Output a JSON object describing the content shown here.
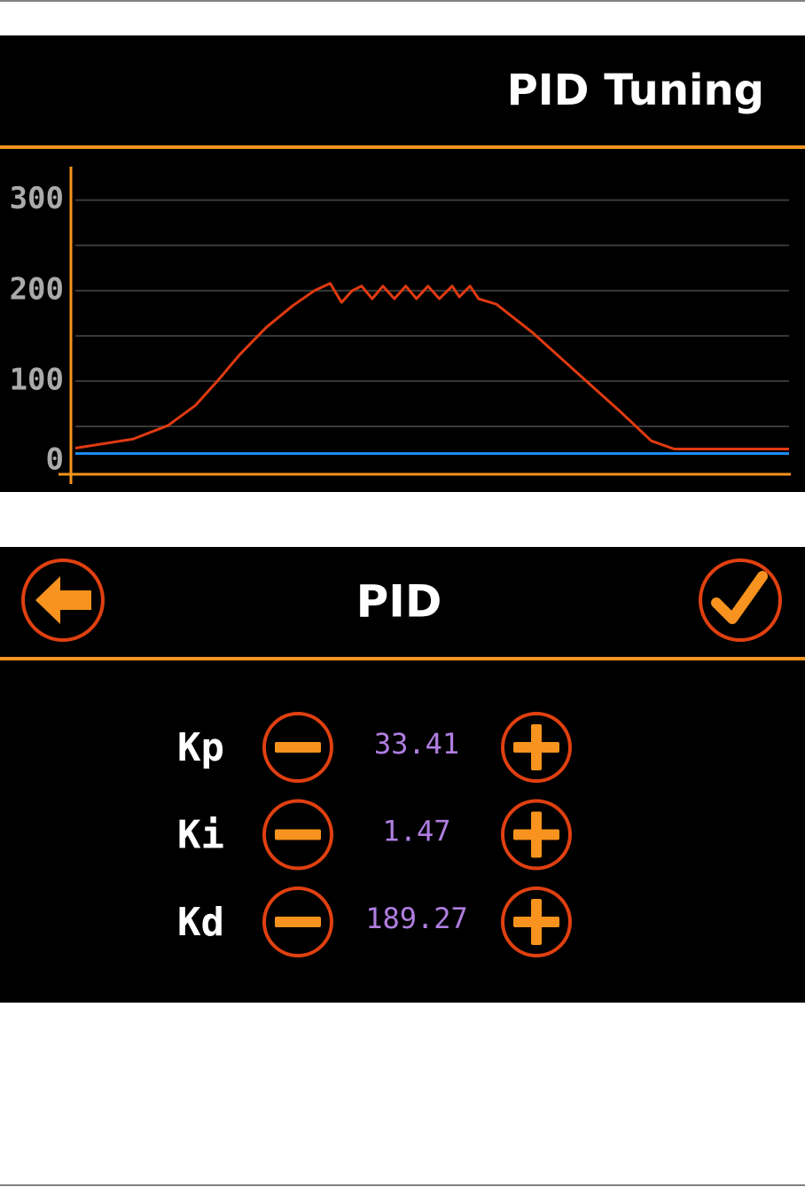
{
  "chart_data": {
    "type": "line",
    "title": "PID Tuning",
    "xlim": [
      0,
      100
    ],
    "ylim": [
      0,
      335
    ],
    "yticks": [
      0,
      100,
      200,
      300
    ],
    "minor_yticks": [
      50,
      150,
      250
    ],
    "grid": true,
    "series": [
      {
        "color": "#1e90ff",
        "x": [
          0,
          100
        ],
        "values": [
          20,
          20
        ]
      },
      {
        "color": "#e03a10",
        "x": [
          0,
          8.1,
          13,
          16.8,
          19.9,
          23,
          26.7,
          30.4,
          33.5,
          35.7,
          37.3,
          38.8,
          40.1,
          41.6,
          43.1,
          44.7,
          46.3,
          47.8,
          49.4,
          51,
          52.8,
          53.8,
          55.3,
          56.5,
          59,
          64,
          70.2,
          76.4,
          80.7,
          83.9,
          100
        ],
        "values": [
          26,
          36,
          51,
          73,
          100,
          129,
          159,
          183,
          200,
          208,
          187,
          200,
          205,
          191,
          205,
          191,
          205,
          191,
          205,
          191,
          205,
          193,
          205,
          191,
          185,
          154,
          110,
          66,
          34,
          25,
          25
        ]
      }
    ]
  },
  "panel": {
    "title": "PID",
    "params": [
      {
        "name": "Kp",
        "value": 33.41
      },
      {
        "name": "Ki",
        "value": 1.47
      },
      {
        "name": "Kd",
        "value": 189.27
      }
    ]
  }
}
